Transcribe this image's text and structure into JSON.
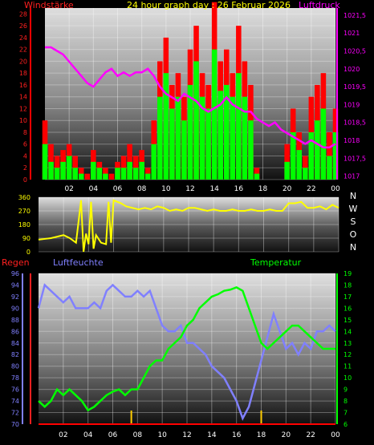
{
  "chart_data": [
    {
      "type": "bar+line",
      "title": "24 hour graph day : 26 Februar 2026",
      "left_axis_label": "Windstärke",
      "right_axis_label": "Luftdruck",
      "x_ticks": [
        "02",
        "04",
        "06",
        "08",
        "10",
        "12",
        "14",
        "16",
        "18",
        "20",
        "22",
        "00"
      ],
      "left_ticks": [
        "0",
        "2",
        "4",
        "6",
        "8",
        "10",
        "12",
        "14",
        "16",
        "18",
        "20",
        "22",
        "24",
        "26",
        "28"
      ],
      "right_ticks": [
        "1017",
        "1017,5",
        "1018",
        "1018,5",
        "1019",
        "1019,5",
        "1020",
        "1020,5",
        "1021",
        "1021,5"
      ],
      "ylim_left": [
        0,
        29
      ],
      "ylim_right": [
        1016.9,
        1021.7
      ],
      "colors": {
        "gust": "#ff0000",
        "wind": "#00ff00",
        "pressure": "#ff00ff"
      },
      "series": [
        {
          "name": "Luftdruck",
          "axis": "right",
          "x": [
            0,
            0.5,
            1,
            1.5,
            2,
            2.5,
            3,
            3.5,
            4,
            4.5,
            5,
            5.5,
            6,
            6.5,
            7,
            7.5,
            8,
            8.5,
            9,
            9.5,
            10,
            10.5,
            11,
            11.5,
            12,
            12.5,
            13,
            13.5,
            14,
            14.5,
            15,
            15.5,
            16,
            16.5,
            17,
            17.5,
            18,
            18.5,
            19,
            19.5,
            20,
            20.5,
            21,
            21.5,
            22,
            22.5,
            23,
            23.5,
            24
          ],
          "values": [
            1020.6,
            1020.6,
            1020.5,
            1020.4,
            1020.2,
            1020.0,
            1019.8,
            1019.6,
            1019.5,
            1019.7,
            1019.9,
            1020.0,
            1019.8,
            1019.9,
            1019.8,
            1019.9,
            1019.9,
            1020.0,
            1019.8,
            1019.5,
            1019.3,
            1019.2,
            1019.1,
            1019.3,
            1019.2,
            1019.1,
            1018.9,
            1018.8,
            1018.9,
            1019.0,
            1019.2,
            1019.0,
            1018.9,
            1018.8,
            1018.8,
            1018.6,
            1018.5,
            1018.4,
            1018.5,
            1018.3,
            1018.2,
            1018.1,
            1018.0,
            1017.9,
            1018.0,
            1017.9,
            1017.8,
            1017.8,
            1017.9
          ]
        },
        {
          "name": "gust",
          "axis": "left",
          "x": [
            0,
            0.5,
            1,
            1.5,
            2,
            2.5,
            3,
            3.5,
            4,
            4.5,
            5,
            5.5,
            6,
            6.5,
            7,
            7.5,
            8,
            8.5,
            9,
            9.5,
            10,
            10.5,
            11,
            11.5,
            12,
            12.5,
            13,
            13.5,
            14,
            14.5,
            15,
            15.5,
            16,
            16.5,
            17,
            17.5,
            18,
            18.5,
            19,
            19.5,
            20,
            20.5,
            21,
            21.5,
            22,
            22.5,
            23,
            23.5,
            24
          ],
          "values": [
            10,
            6,
            4,
            5,
            6,
            4,
            2,
            1,
            5,
            3,
            2,
            1,
            3,
            4,
            6,
            4,
            5,
            2,
            10,
            20,
            24,
            16,
            18,
            14,
            22,
            26,
            18,
            16,
            30,
            20,
            22,
            18,
            26,
            20,
            16,
            2,
            0,
            0,
            0,
            0,
            6,
            12,
            8,
            4,
            14,
            16,
            18,
            8,
            12
          ]
        },
        {
          "name": "wind",
          "axis": "left",
          "x": [
            0,
            0.5,
            1,
            1.5,
            2,
            2.5,
            3,
            3.5,
            4,
            4.5,
            5,
            5.5,
            6,
            6.5,
            7,
            7.5,
            8,
            8.5,
            9,
            9.5,
            10,
            10.5,
            11,
            11.5,
            12,
            12.5,
            13,
            13.5,
            14,
            14.5,
            15,
            15.5,
            16,
            16.5,
            17,
            17.5,
            18,
            18.5,
            19,
            19.5,
            20,
            20.5,
            21,
            21.5,
            22,
            22.5,
            23,
            23.5,
            24
          ],
          "values": [
            6,
            3,
            2,
            3,
            4,
            2,
            1,
            0,
            3,
            2,
            1,
            0,
            2,
            2,
            3,
            2,
            3,
            1,
            6,
            14,
            18,
            12,
            14,
            10,
            16,
            20,
            14,
            12,
            22,
            15,
            16,
            14,
            18,
            14,
            10,
            1,
            0,
            0,
            0,
            0,
            3,
            8,
            5,
            2,
            8,
            10,
            12,
            4,
            8
          ]
        }
      ]
    },
    {
      "type": "line",
      "right_labels": [
        "N",
        "W",
        "S",
        "O",
        "N"
      ],
      "x_ticks": [
        "02",
        "04",
        "06",
        "08",
        "10",
        "12",
        "14",
        "16",
        "18",
        "20",
        "22",
        "00"
      ],
      "left_ticks": [
        "0",
        "90",
        "180",
        "270",
        "360"
      ],
      "ylim": [
        0,
        360
      ],
      "color": "#ffff00",
      "series": [
        {
          "name": "Windrichtung",
          "x": [
            0,
            0.5,
            1,
            1.5,
            2,
            2.5,
            3,
            3.4,
            3.6,
            3.8,
            4,
            4.2,
            4.4,
            4.6,
            5,
            5.4,
            5.6,
            5.8,
            6,
            6.3,
            6.6,
            7,
            7.5,
            8,
            8.5,
            9,
            9.5,
            10,
            10.5,
            11,
            11.5,
            12,
            12.5,
            13,
            13.5,
            14,
            14.5,
            15,
            15.5,
            16,
            16.5,
            17,
            17.5,
            18,
            18.5,
            19,
            19.5,
            20,
            20.5,
            21,
            21.5,
            22,
            22.5,
            23,
            23.5,
            24
          ],
          "values": [
            80,
            85,
            90,
            100,
            110,
            90,
            60,
            340,
            0,
            120,
            50,
            330,
            20,
            110,
            60,
            50,
            330,
            60,
            340,
            330,
            320,
            300,
            290,
            280,
            290,
            280,
            300,
            290,
            270,
            280,
            270,
            290,
            290,
            280,
            270,
            280,
            270,
            270,
            280,
            270,
            270,
            280,
            270,
            270,
            280,
            270,
            270,
            320,
            320,
            330,
            290,
            290,
            300,
            280,
            310,
            290
          ]
        }
      ]
    },
    {
      "type": "bar+line",
      "top_labels": [
        "Regen",
        "Luftfeuchte",
        "Temperatur"
      ],
      "x_ticks": [
        "02",
        "04",
        "06",
        "08",
        "10",
        "12",
        "14",
        "16",
        "18",
        "20",
        "22",
        "00"
      ],
      "left_ticks": [
        "70",
        "72",
        "74",
        "76",
        "78",
        "80",
        "82",
        "84",
        "86",
        "88",
        "90",
        "92",
        "94",
        "96"
      ],
      "right_ticks": [
        "6",
        "7",
        "8",
        "9",
        "10",
        "11",
        "12",
        "13",
        "14",
        "15",
        "16",
        "17",
        "18",
        "19"
      ],
      "ylim_left": [
        70,
        96
      ],
      "ylim_right": [
        6,
        19
      ],
      "colors": {
        "rain": "#ff0000",
        "humidity": "#8080ff",
        "temperature": "#00ff00",
        "marker": "#ffcc00"
      },
      "markers_x": [
        7.5,
        18
      ],
      "series": [
        {
          "name": "Luftfeuchte",
          "axis": "left",
          "x": [
            0,
            0.5,
            1,
            1.5,
            2,
            2.5,
            3,
            3.5,
            4,
            4.5,
            5,
            5.5,
            6,
            6.5,
            7,
            7.5,
            8,
            8.5,
            9,
            9.5,
            10,
            10.5,
            11,
            11.5,
            12,
            12.5,
            13,
            13.5,
            14,
            14.5,
            15,
            15.5,
            16,
            16.5,
            17,
            17.5,
            18,
            18.5,
            19,
            19.5,
            20,
            20.5,
            21,
            21.5,
            22,
            22.5,
            23,
            23.5,
            24
          ],
          "values": [
            90,
            94,
            93,
            92,
            91,
            92,
            90,
            90,
            90,
            91,
            90,
            93,
            94,
            93,
            92,
            92,
            93,
            92,
            93,
            90,
            87,
            86,
            86,
            87,
            84,
            84,
            83,
            82,
            80,
            79,
            78,
            76,
            74,
            71,
            73,
            77,
            81,
            85,
            89,
            86,
            83,
            84,
            82,
            84,
            83,
            86,
            86,
            87,
            86
          ]
        },
        {
          "name": "Temperatur",
          "axis": "right",
          "x": [
            0,
            0.5,
            1,
            1.5,
            2,
            2.5,
            3,
            3.5,
            4,
            4.5,
            5,
            5.5,
            6,
            6.5,
            7,
            7.5,
            8,
            8.5,
            9,
            9.5,
            10,
            10.5,
            11,
            11.5,
            12,
            12.5,
            13,
            13.5,
            14,
            14.5,
            15,
            15.5,
            16,
            16.5,
            17,
            17.5,
            18,
            18.5,
            19,
            19.5,
            20,
            20.5,
            21,
            21.5,
            22,
            22.5,
            23,
            23.5,
            24
          ],
          "values": [
            8,
            7.5,
            8,
            9,
            8.5,
            9,
            8.5,
            8,
            7.2,
            7.5,
            8,
            8.5,
            8.8,
            9,
            8.5,
            9.0,
            9.0,
            10,
            11,
            11.5,
            11.5,
            12.5,
            13,
            13.5,
            14.5,
            15,
            16,
            16.5,
            17,
            17.2,
            17.5,
            17.6,
            17.8,
            17.5,
            16,
            14.5,
            13,
            12.5,
            13,
            13.5,
            14,
            14.5,
            14.5,
            14,
            13.5,
            13,
            12.5,
            12.5,
            12.5
          ]
        },
        {
          "name": "Regen",
          "axis": "left",
          "values": []
        }
      ]
    }
  ]
}
